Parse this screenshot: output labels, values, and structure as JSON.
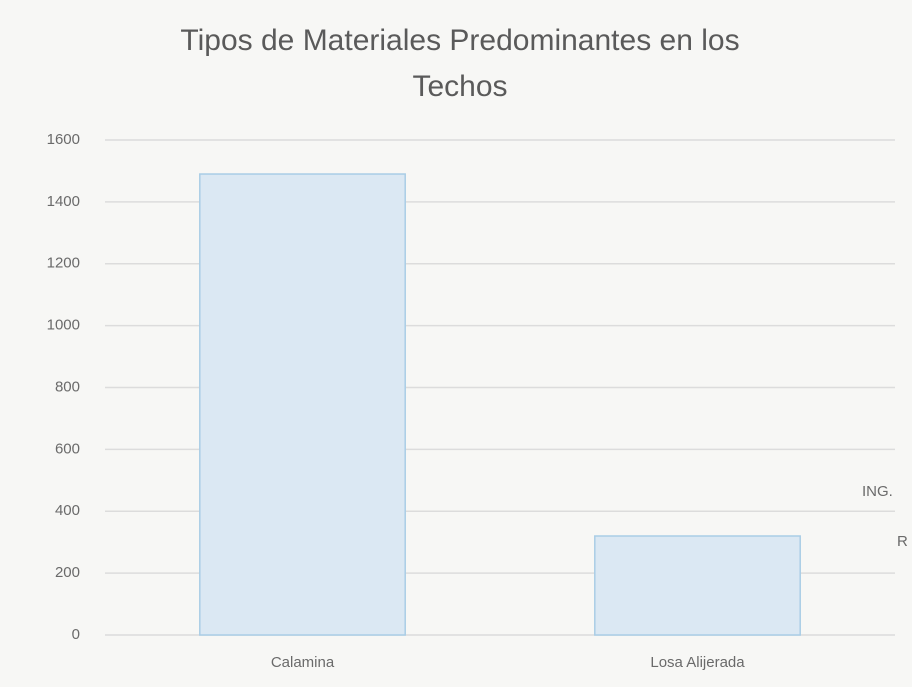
{
  "chart_data": {
    "type": "bar",
    "title": "Tipos de Materiales Predominantes en los Techos",
    "categories": [
      "Calamina",
      "Losa Alijerada"
    ],
    "values": [
      1490,
      320
    ],
    "color": "#dbe8f3",
    "ylim": [
      0,
      1600
    ],
    "yticks": [
      0,
      200,
      400,
      600,
      800,
      1000,
      1200,
      1400,
      1600
    ],
    "grid": true,
    "annotations": [
      "ING.",
      "R"
    ]
  }
}
